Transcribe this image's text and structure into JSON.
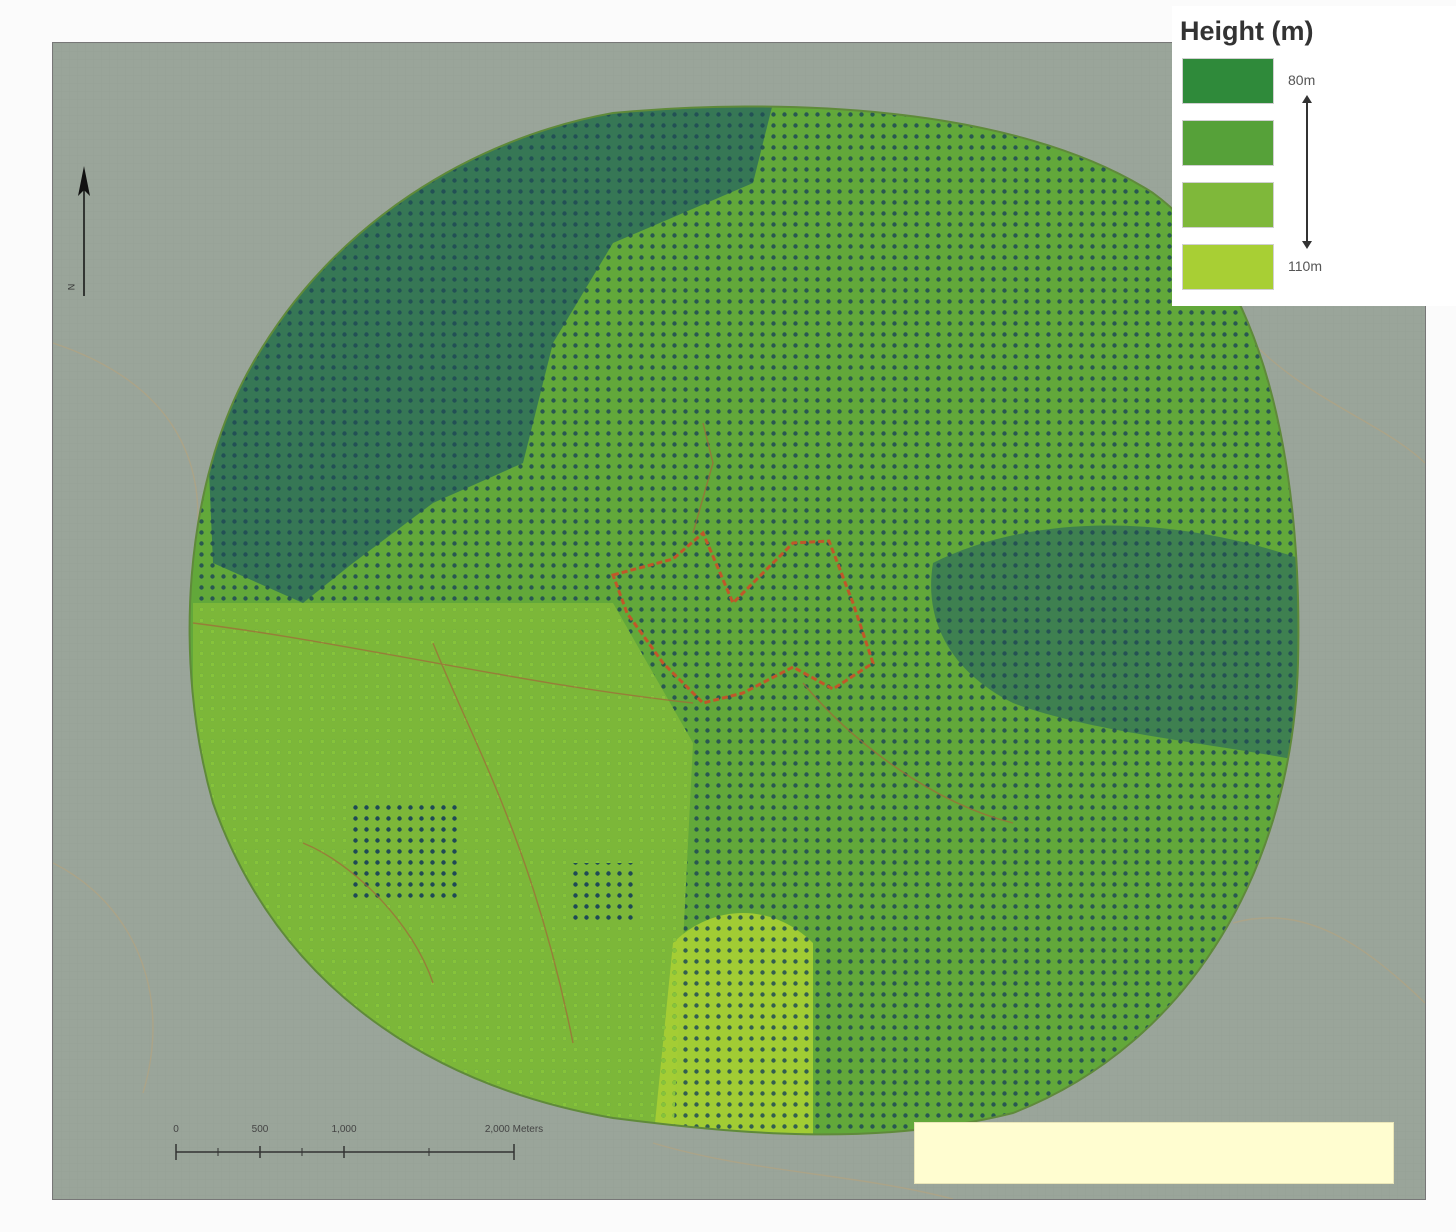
{
  "legend": {
    "title": "Height (m)",
    "colors": [
      "#2f8a3a",
      "#56a139",
      "#7fb83a",
      "#a8cf34"
    ],
    "label_top": "80m",
    "label_bottom": "110m"
  },
  "axes": {
    "top_ticks": [
      "",
      "",
      "",
      "",
      "",
      ""
    ],
    "bottom_ticks": [
      "",
      "",
      "",
      "",
      "",
      "",
      "",
      ""
    ],
    "left_ticks": [
      "",
      "",
      "",
      "",
      "",
      "",
      ""
    ],
    "right_ticks": [
      "",
      "",
      "",
      "",
      ""
    ]
  },
  "north_arrow": {
    "label": "N"
  },
  "scale_bar": {
    "labels": [
      "0",
      "500",
      "1,000",
      "2,000 Meters"
    ]
  },
  "map": {
    "base_color": "#9aa59a",
    "study_area_color": "#62a83a",
    "site_boundary_color": "#c0572a",
    "dot_dark_color": "#1f4a55",
    "dot_light_color": "#86c43a"
  }
}
